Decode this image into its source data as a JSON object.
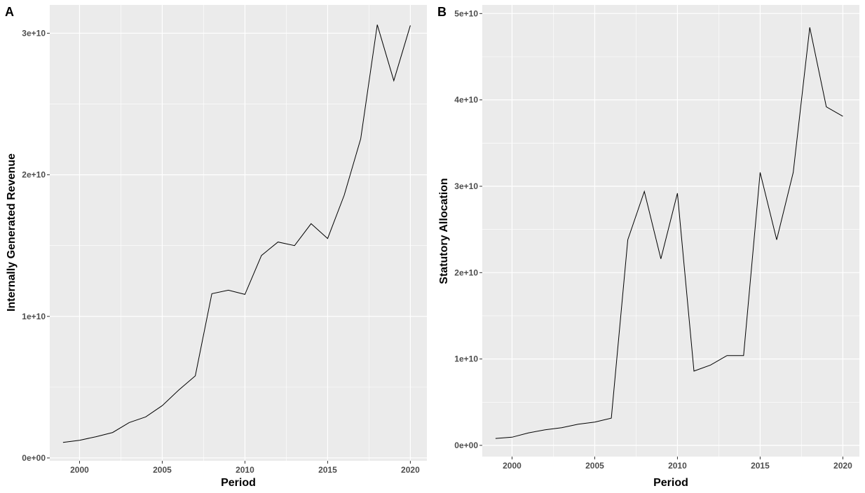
{
  "chart_data": [
    {
      "panel_tag": "A",
      "type": "line",
      "xlabel": "Period",
      "ylabel": "Internally Generated Revenue",
      "xlim": [
        1998.2,
        2021.0
      ],
      "ylim": [
        -200000000.0,
        32000000000.0
      ],
      "x_ticks": [
        2000,
        2005,
        2010,
        2015,
        2020
      ],
      "x_tick_labels": [
        "2000",
        "2005",
        "2010",
        "2015",
        "2020"
      ],
      "y_ticks": [
        0,
        10000000000.0,
        20000000000.0,
        30000000000.0
      ],
      "y_tick_labels": [
        "0e+00",
        "1e+10",
        "2e+10",
        "3e+10"
      ],
      "grid": true,
      "legend": "none",
      "line_color": "#000000",
      "panel_background": "#ebebeb",
      "grid_color": "#ffffff",
      "x": [
        1999,
        2000,
        2001,
        2002,
        2003,
        2004,
        2005,
        2006,
        2007,
        2008,
        2009,
        2010,
        2011,
        2012,
        2013,
        2014,
        2015,
        2016,
        2017,
        2018,
        2019,
        2020
      ],
      "values": [
        1100000000.0,
        1250000000.0,
        1500000000.0,
        1800000000.0,
        2500000000.0,
        2900000000.0,
        3700000000.0,
        4800000000.0,
        5800000000.0,
        11600000000.0,
        11850000000.0,
        11550000000.0,
        14300000000.0,
        15250000000.0,
        15000000000.0,
        16550000000.0,
        15500000000.0,
        18550000000.0,
        22550000000.0,
        30600000000.0,
        26650000000.0,
        30550000000.0
      ]
    },
    {
      "panel_tag": "B",
      "type": "line",
      "xlabel": "Period",
      "ylabel": "Statutory Allocation",
      "xlim": [
        1998.2,
        2021.0
      ],
      "ylim": [
        -1300000000.0,
        51000000000.0
      ],
      "x_ticks": [
        2000,
        2005,
        2010,
        2015,
        2020
      ],
      "x_tick_labels": [
        "2000",
        "2005",
        "2010",
        "2015",
        "2020"
      ],
      "y_ticks": [
        0,
        10000000000.0,
        20000000000.0,
        30000000000.0,
        40000000000.0,
        50000000000.0
      ],
      "y_tick_labels": [
        "0e+00",
        "1e+10",
        "2e+10",
        "3e+10",
        "4e+10",
        "5e+10"
      ],
      "grid": true,
      "legend": "none",
      "line_color": "#000000",
      "panel_background": "#ebebeb",
      "grid_color": "#ffffff",
      "x": [
        1999,
        2000,
        2001,
        2002,
        2003,
        2004,
        2005,
        2006,
        2007,
        2008,
        2009,
        2010,
        2011,
        2012,
        2013,
        2014,
        2015,
        2016,
        2017,
        2018,
        2019,
        2020
      ],
      "values": [
        800000000.0,
        950000000.0,
        1450000000.0,
        1800000000.0,
        2050000000.0,
        2450000000.0,
        2700000000.0,
        3150000000.0,
        23800000000.0,
        29400000000.0,
        21600000000.0,
        29200000000.0,
        8600000000.0,
        9300000000.0,
        10400000000.0,
        10400000000.0,
        31600000000.0,
        23800000000.0,
        31600000000.0,
        48400000000.0,
        39200000000.0,
        38100000000.0
      ]
    }
  ]
}
